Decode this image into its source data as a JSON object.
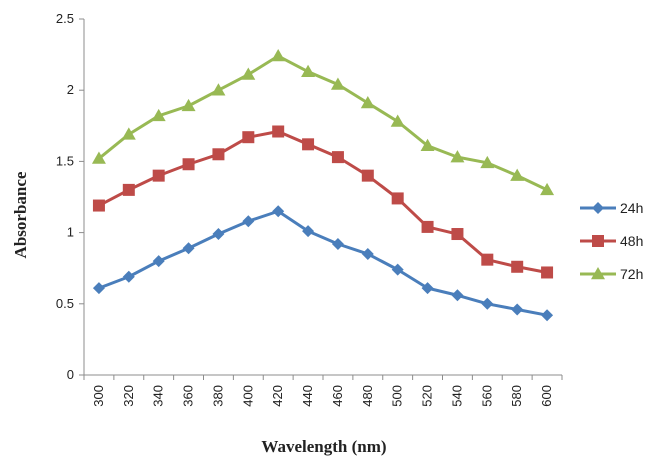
{
  "chart_data": {
    "type": "line",
    "title": "",
    "xlabel": "Wavelength (nm)",
    "ylabel": "Absorbance",
    "x": [
      300,
      320,
      340,
      360,
      380,
      400,
      420,
      440,
      460,
      480,
      500,
      520,
      540,
      560,
      580,
      600
    ],
    "ylim": [
      0,
      2.5
    ],
    "yticks": [
      "0",
      "0.5",
      "1",
      "1.5",
      "2",
      "2.5"
    ],
    "grid": false,
    "legend_position": "right",
    "series": [
      {
        "name": "24h",
        "marker": "diamond",
        "color": "#4a7ebb",
        "values": [
          0.61,
          0.69,
          0.8,
          0.89,
          0.99,
          1.08,
          1.15,
          1.01,
          0.92,
          0.85,
          0.74,
          0.61,
          0.56,
          0.5,
          0.46,
          0.42
        ]
      },
      {
        "name": "48h",
        "marker": "square",
        "color": "#be4b48",
        "values": [
          1.19,
          1.3,
          1.4,
          1.48,
          1.55,
          1.67,
          1.71,
          1.62,
          1.53,
          1.4,
          1.24,
          1.04,
          0.99,
          0.81,
          0.76,
          0.72
        ]
      },
      {
        "name": "72h",
        "marker": "triangle",
        "color": "#98b954",
        "values": [
          1.52,
          1.69,
          1.82,
          1.89,
          2.0,
          2.11,
          2.24,
          2.13,
          2.04,
          1.91,
          1.78,
          1.61,
          1.53,
          1.49,
          1.4,
          1.3
        ]
      }
    ]
  },
  "colors": {
    "axis": "#8c8c8c",
    "text": "#222222"
  }
}
